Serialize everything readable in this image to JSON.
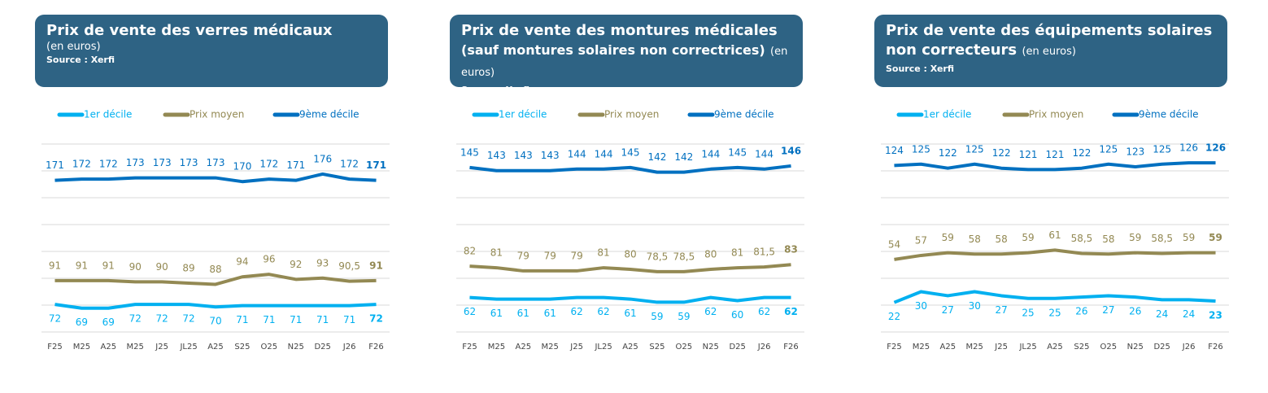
{
  "chart_data": [
    {
      "type": "line",
      "title": "Prix de vente des verres médicaux",
      "unit": "(en euros)",
      "source": "Source : Xerfi",
      "categories": [
        "F25",
        "M25",
        "A25",
        "M25",
        "J25",
        "JL25",
        "A25",
        "S25",
        "O25",
        "N25",
        "D25",
        "J26",
        "F26"
      ],
      "ylim": [
        50,
        200
      ],
      "grid": true,
      "series": [
        {
          "name": "1er décile",
          "color": "#00b0f0",
          "label_side": "below",
          "values": [
            72,
            69,
            69,
            72,
            72,
            72,
            70,
            71,
            71,
            71,
            71,
            71,
            72
          ]
        },
        {
          "name": "Prix moyen",
          "color": "#938953",
          "label_side": "above",
          "values": [
            91,
            91,
            91,
            90,
            90,
            89,
            88,
            94,
            96,
            92,
            93,
            90.5,
            91
          ],
          "value_labels": [
            "91",
            "91",
            "91",
            "90",
            "90",
            "89",
            "88",
            "94",
            "96",
            "92",
            "93",
            "90,5",
            "91"
          ]
        },
        {
          "name": "9ème décile",
          "color": "#0070c0",
          "label_side": "above",
          "values": [
            171,
            172,
            172,
            173,
            173,
            173,
            173,
            170,
            172,
            171,
            176,
            172,
            171
          ]
        }
      ]
    },
    {
      "type": "line",
      "title": "Prix de vente des montures médicales",
      "subtitle": "(sauf montures solaires non correctrices)",
      "unit": "(en euros)",
      "source": "Source : Xerfi",
      "categories": [
        "F25",
        "M25",
        "A25",
        "M25",
        "J25",
        "JL25",
        "A25",
        "S25",
        "O25",
        "N25",
        "D25",
        "J26",
        "F26"
      ],
      "ylim": [
        40,
        160
      ],
      "grid": true,
      "series": [
        {
          "name": "1er décile",
          "color": "#00b0f0",
          "label_side": "below",
          "values": [
            62,
            61,
            61,
            61,
            62,
            62,
            61,
            59,
            59,
            62,
            60,
            62,
            62
          ]
        },
        {
          "name": "Prix moyen",
          "color": "#938953",
          "label_side": "above",
          "values": [
            82,
            81,
            79,
            79,
            79,
            81,
            80,
            78.5,
            78.5,
            80,
            81,
            81.5,
            83
          ],
          "value_labels": [
            "82",
            "81",
            "79",
            "79",
            "79",
            "81",
            "80",
            "78,5",
            "78,5",
            "80",
            "81",
            "81,5",
            "83"
          ]
        },
        {
          "name": "9ème décile",
          "color": "#0070c0",
          "label_side": "above",
          "values": [
            145,
            143,
            143,
            143,
            144,
            144,
            145,
            142,
            142,
            144,
            145,
            144,
            146
          ]
        }
      ]
    },
    {
      "type": "line",
      "title": "Prix de vente des équipements solaires non correcteurs",
      "unit": "(en euros)",
      "source": "Source : Xerfi",
      "categories": [
        "F25",
        "M25",
        "A25",
        "M25",
        "J25",
        "JL25",
        "A25",
        "S25",
        "O25",
        "N25",
        "D25",
        "J26",
        "F26"
      ],
      "ylim": [
        0,
        140
      ],
      "grid": true,
      "series": [
        {
          "name": "1er décile",
          "color": "#00b0f0",
          "label_side": "below",
          "values": [
            22,
            30,
            27,
            30,
            27,
            25,
            25,
            26,
            27,
            26,
            24,
            24,
            23
          ]
        },
        {
          "name": "Prix moyen",
          "color": "#938953",
          "label_side": "above",
          "values": [
            54,
            57,
            59,
            58,
            58,
            59,
            61,
            58.5,
            58,
            59,
            58.5,
            59,
            59
          ],
          "value_labels": [
            "54",
            "57",
            "59",
            "58",
            "58",
            "59",
            "61",
            "58,5",
            "58",
            "59",
            "58,5",
            "59",
            "59"
          ]
        },
        {
          "name": "9ème décile",
          "color": "#0070c0",
          "label_side": "above",
          "values": [
            124,
            125,
            122,
            125,
            122,
            121,
            121,
            122,
            125,
            123,
            125,
            126,
            126
          ]
        }
      ]
    }
  ]
}
